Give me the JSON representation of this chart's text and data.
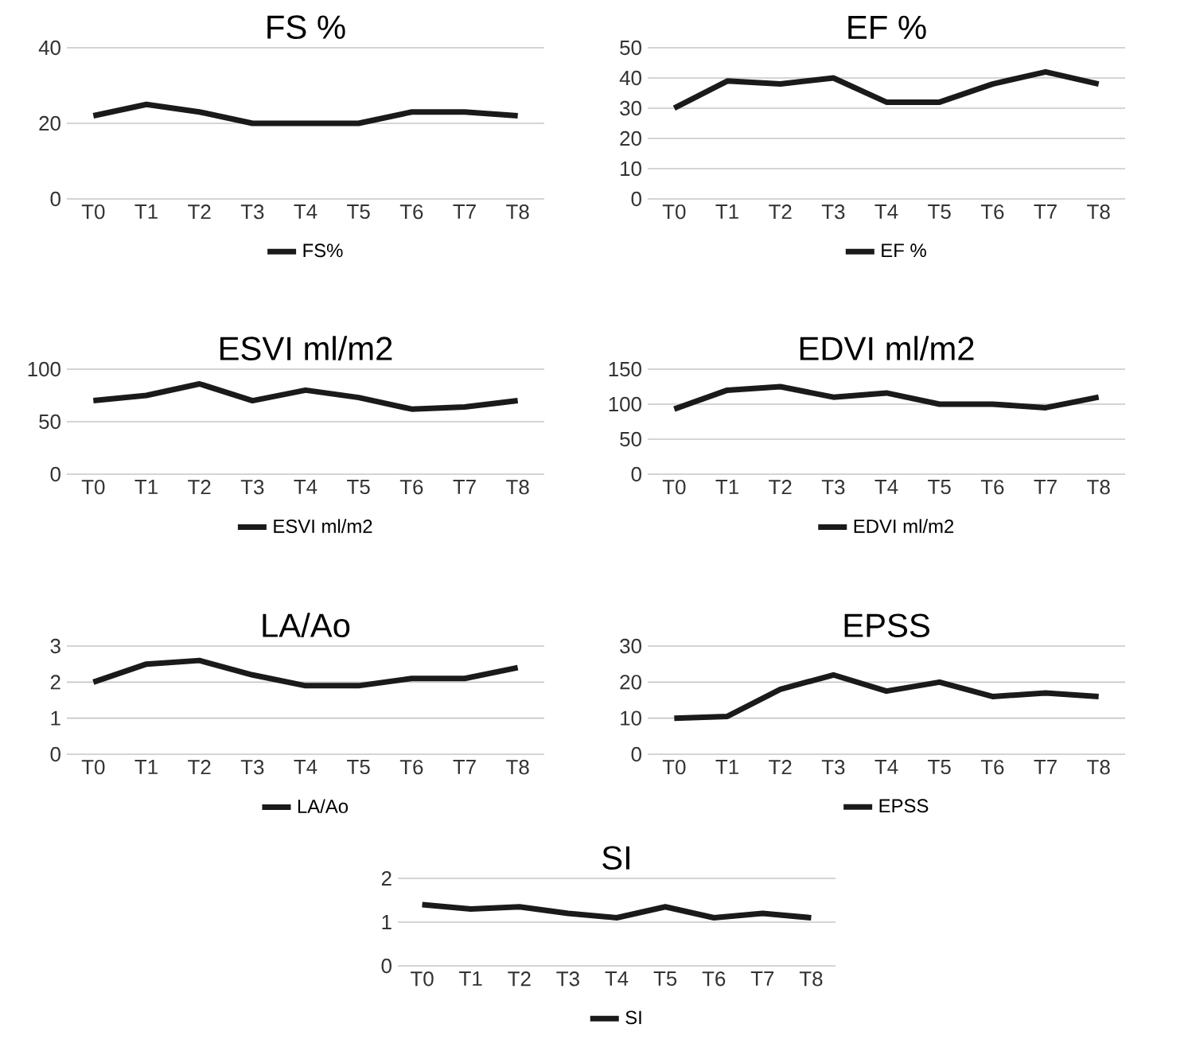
{
  "chart_data": [
    {
      "type": "line",
      "title": "FS %",
      "categories": [
        "T0",
        "T1",
        "T2",
        "T3",
        "T4",
        "T5",
        "T6",
        "T7",
        "T8"
      ],
      "series": [
        {
          "name": "FS%",
          "color": "#1a1a1a",
          "values": [
            22,
            25,
            23,
            20,
            20,
            20,
            23,
            23,
            22
          ]
        }
      ],
      "ylim": [
        0,
        40
      ],
      "yticks": [
        0,
        20,
        40
      ],
      "grid": "y",
      "legend": "bottom"
    },
    {
      "type": "line",
      "title": "EF %",
      "categories": [
        "T0",
        "T1",
        "T2",
        "T3",
        "T4",
        "T5",
        "T6",
        "T7",
        "T8"
      ],
      "series": [
        {
          "name": "EF %",
          "color": "#1a1a1a",
          "values": [
            30,
            39,
            38,
            40,
            32,
            32,
            38,
            42,
            38
          ]
        }
      ],
      "ylim": [
        0,
        50
      ],
      "yticks": [
        0,
        10,
        20,
        30,
        40,
        50
      ],
      "grid": "y",
      "legend": "bottom"
    },
    {
      "type": "line",
      "title": "ESVI ml/m2",
      "categories": [
        "T0",
        "T1",
        "T2",
        "T3",
        "T4",
        "T5",
        "T6",
        "T7",
        "T8"
      ],
      "series": [
        {
          "name": "ESVI ml/m2",
          "color": "#1a1a1a",
          "values": [
            70,
            75,
            86,
            70,
            80,
            73,
            62,
            64,
            70
          ]
        }
      ],
      "ylim": [
        0,
        100
      ],
      "yticks": [
        0,
        50,
        100
      ],
      "grid": "y",
      "legend": "bottom"
    },
    {
      "type": "line",
      "title": "EDVI ml/m2",
      "categories": [
        "T0",
        "T1",
        "T2",
        "T3",
        "T4",
        "T5",
        "T6",
        "T7",
        "T8"
      ],
      "series": [
        {
          "name": "EDVI ml/m2",
          "color": "#1a1a1a",
          "values": [
            93,
            120,
            125,
            110,
            116,
            100,
            100,
            95,
            110
          ]
        }
      ],
      "ylim": [
        0,
        150
      ],
      "yticks": [
        0,
        50,
        100,
        150
      ],
      "grid": "y",
      "legend": "bottom"
    },
    {
      "type": "line",
      "title": "LA/Ao",
      "categories": [
        "T0",
        "T1",
        "T2",
        "T3",
        "T4",
        "T5",
        "T6",
        "T7",
        "T8"
      ],
      "series": [
        {
          "name": "LA/Ao",
          "color": "#1a1a1a",
          "values": [
            2.0,
            2.5,
            2.6,
            2.2,
            1.9,
            1.9,
            2.1,
            2.1,
            2.4
          ]
        }
      ],
      "ylim": [
        0,
        3
      ],
      "yticks": [
        0,
        1,
        2,
        3
      ],
      "grid": "y",
      "legend": "bottom"
    },
    {
      "type": "line",
      "title": "EPSS",
      "categories": [
        "T0",
        "T1",
        "T2",
        "T3",
        "T4",
        "T5",
        "T6",
        "T7",
        "T8"
      ],
      "series": [
        {
          "name": "EPSS",
          "color": "#1a1a1a",
          "values": [
            10,
            10.5,
            18,
            22,
            17.5,
            20,
            16,
            17,
            16
          ]
        }
      ],
      "ylim": [
        0,
        30
      ],
      "yticks": [
        0,
        10,
        20,
        30
      ],
      "grid": "y",
      "legend": "bottom"
    },
    {
      "type": "line",
      "title": "SI",
      "categories": [
        "T0",
        "T1",
        "T2",
        "T3",
        "T4",
        "T5",
        "T6",
        "T7",
        "T8"
      ],
      "series": [
        {
          "name": "SI",
          "color": "#1a1a1a",
          "values": [
            1.4,
            1.3,
            1.35,
            1.2,
            1.1,
            1.35,
            1.1,
            1.2,
            1.1
          ]
        }
      ],
      "ylim": [
        0,
        2
      ],
      "yticks": [
        0,
        1,
        2
      ],
      "grid": "y",
      "legend": "bottom"
    }
  ]
}
